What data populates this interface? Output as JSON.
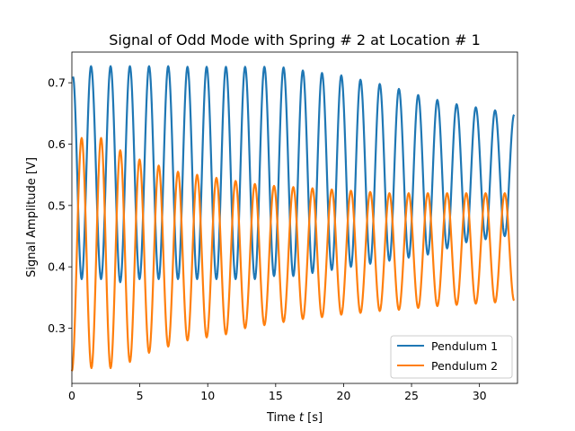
{
  "chart_data": {
    "type": "line",
    "title": "Signal of Odd Mode with Spring # 2 at Location # 1",
    "xlabel_prefix": "Time ",
    "xlabel_var": "t",
    "xlabel_suffix": " [s]",
    "ylabel": "Signal Amplitude [V]",
    "xlim": [
      0,
      32.8
    ],
    "ylim": [
      0.21,
      0.75
    ],
    "xticks": [
      0,
      5,
      10,
      15,
      20,
      25,
      30
    ],
    "yticks": [
      0.3,
      0.4,
      0.5,
      0.6,
      0.7
    ],
    "grid": false,
    "legend_position": "lower-right",
    "series": [
      {
        "name": "Pendulum 1",
        "color": "#1f77b4",
        "peak_time_s": [
          0.08,
          1.41,
          2.85,
          4.27,
          5.68,
          7.09,
          8.51,
          9.92,
          11.34,
          12.75,
          14.17,
          15.58,
          17.0,
          18.41,
          19.83,
          21.24,
          22.66,
          24.07,
          25.49,
          26.9,
          28.32,
          29.73,
          31.15,
          32.55
        ],
        "peak_amplitude_v": [
          0.71,
          0.727,
          0.727,
          0.727,
          0.727,
          0.727,
          0.726,
          0.726,
          0.726,
          0.726,
          0.726,
          0.725,
          0.72,
          0.716,
          0.712,
          0.705,
          0.698,
          0.69,
          0.68,
          0.672,
          0.665,
          0.66,
          0.655,
          0.648
        ],
        "trough_time_s": [
          0.72,
          2.15,
          3.56,
          4.98,
          6.39,
          7.81,
          9.22,
          10.64,
          12.05,
          13.47,
          14.88,
          16.3,
          17.71,
          19.13,
          20.54,
          21.96,
          23.37,
          24.79,
          26.2,
          27.62,
          29.03,
          30.45,
          31.86
        ],
        "trough_amplitude_v": [
          0.38,
          0.38,
          0.375,
          0.38,
          0.38,
          0.38,
          0.38,
          0.38,
          0.38,
          0.38,
          0.385,
          0.385,
          0.39,
          0.395,
          0.4,
          0.405,
          0.41,
          0.415,
          0.42,
          0.43,
          0.44,
          0.445,
          0.45
        ]
      },
      {
        "name": "Pendulum 2",
        "color": "#ff7f0e",
        "peak_time_s": [
          0.72,
          2.15,
          3.56,
          4.98,
          6.39,
          7.81,
          9.22,
          10.64,
          12.05,
          13.47,
          14.88,
          16.3,
          17.71,
          19.13,
          20.54,
          21.96,
          23.37,
          24.79,
          26.2,
          27.62,
          29.03,
          30.45,
          31.86
        ],
        "peak_amplitude_v": [
          0.61,
          0.61,
          0.59,
          0.575,
          0.565,
          0.555,
          0.55,
          0.545,
          0.54,
          0.535,
          0.532,
          0.53,
          0.528,
          0.526,
          0.524,
          0.522,
          0.52,
          0.52,
          0.52,
          0.52,
          0.52,
          0.52,
          0.52
        ],
        "trough_time_s": [
          0.0,
          1.44,
          2.85,
          4.27,
          5.68,
          7.09,
          8.51,
          9.92,
          11.34,
          12.75,
          14.17,
          15.58,
          17.0,
          18.41,
          19.83,
          21.24,
          22.66,
          24.07,
          25.49,
          26.9,
          28.32,
          29.73,
          31.15,
          32.55
        ],
        "trough_amplitude_v": [
          0.23,
          0.235,
          0.235,
          0.245,
          0.26,
          0.27,
          0.28,
          0.285,
          0.29,
          0.3,
          0.305,
          0.31,
          0.315,
          0.318,
          0.322,
          0.325,
          0.328,
          0.33,
          0.333,
          0.336,
          0.338,
          0.34,
          0.342,
          0.345
        ]
      }
    ]
  }
}
